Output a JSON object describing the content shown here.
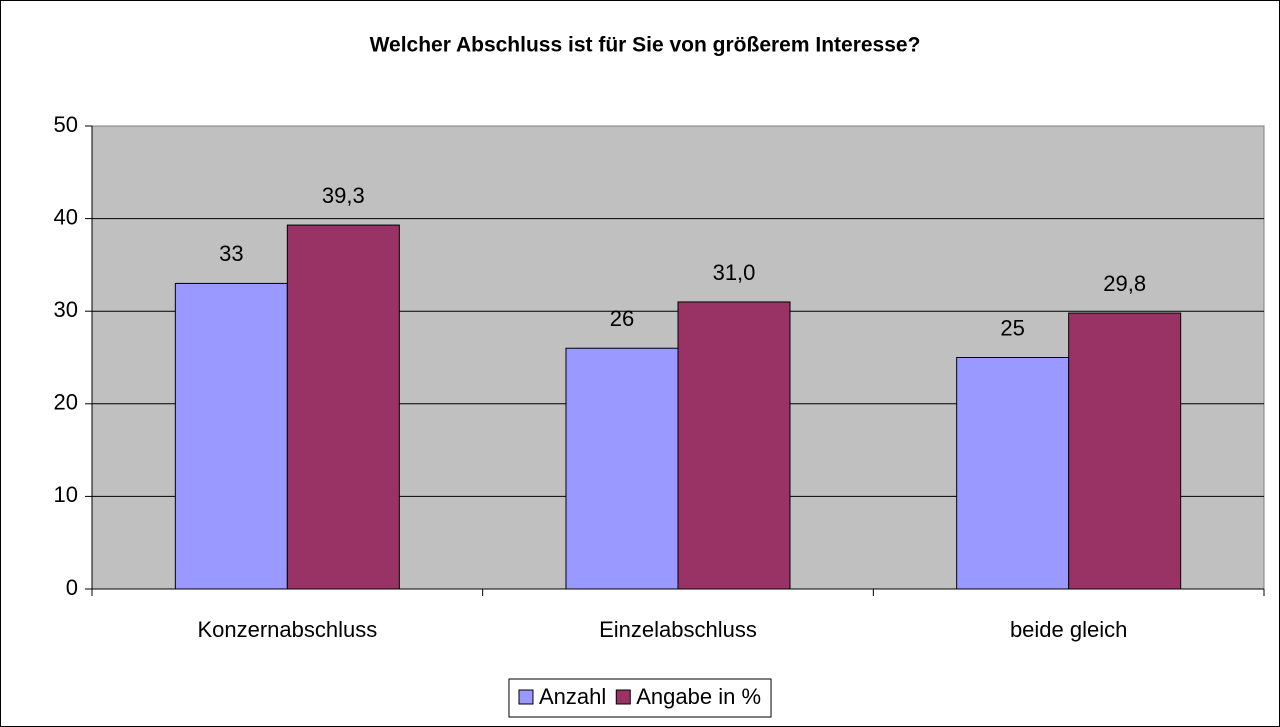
{
  "chart_data": {
    "type": "bar",
    "title": "Welcher Abschluss ist für Sie von größerem Interesse?",
    "categories": [
      "Konzernabschluss",
      "Einzelabschluss",
      "beide gleich"
    ],
    "series": [
      {
        "name": "Anzahl",
        "color": "#9999ff",
        "values": [
          33,
          26,
          25
        ]
      },
      {
        "name": "Angabe in %",
        "color": "#993366",
        "values": [
          39.3,
          31.0,
          29.8
        ],
        "value_labels": [
          "39,3",
          "31,0",
          "29,8"
        ]
      }
    ],
    "ylim": [
      0,
      50
    ],
    "yticks": [
      0,
      10,
      20,
      30,
      40,
      50
    ],
    "grid": true,
    "legend": "bottom"
  }
}
